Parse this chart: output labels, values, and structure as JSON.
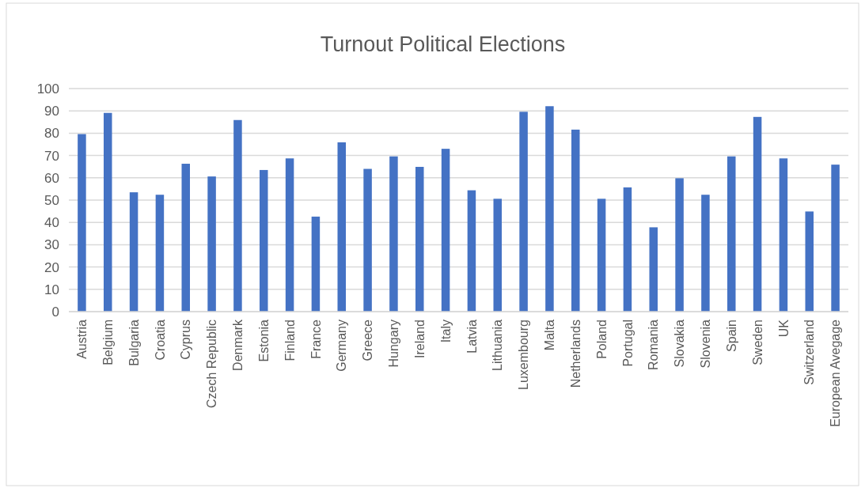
{
  "chart_data": {
    "type": "bar",
    "title": "Turnout Political Elections",
    "categories": [
      "Austria",
      "Belgium",
      "Bulgaria",
      "Croatia",
      "Cyprus",
      "Czech Republic",
      "Denmark",
      "Estonia",
      "Finland",
      "France",
      "Germany",
      "Greece",
      "Hungary",
      "Ireland",
      "Italy",
      "Latvia",
      "Lithuania",
      "Luxembourg",
      "Malta",
      "Netherlands",
      "Poland",
      "Portugal",
      "Romania",
      "Slovakia",
      "Slovenia",
      "Spain",
      "Sweden",
      "UK",
      "Switzerland",
      "European Avegage"
    ],
    "values": [
      79.6,
      89.1,
      53.5,
      52.4,
      66.3,
      60.6,
      85.9,
      63.5,
      68.7,
      42.6,
      75.9,
      64,
      69.6,
      64.9,
      73,
      54.4,
      50.6,
      89.6,
      92.1,
      81.6,
      50.6,
      55.7,
      37.8,
      59.8,
      52.4,
      69.6,
      87.3,
      68.7,
      44.9,
      65.9
    ],
    "color": "#4472c4",
    "ylim": [
      0,
      100
    ],
    "yticks": [
      0,
      10,
      20,
      30,
      40,
      50,
      60,
      70,
      80,
      90,
      100
    ],
    "grid": "y"
  }
}
